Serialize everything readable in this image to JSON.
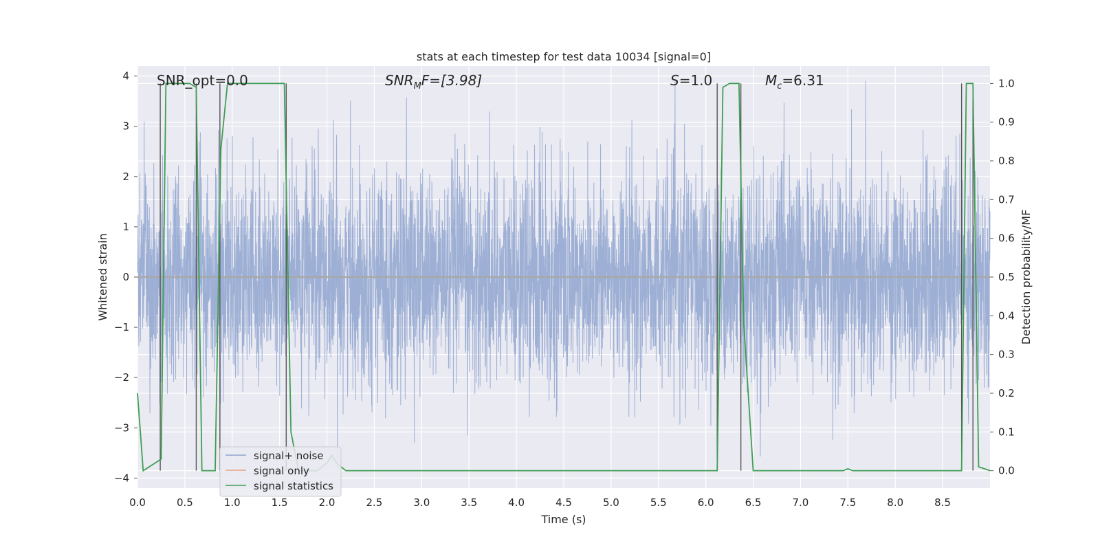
{
  "chart_data": {
    "type": "line",
    "title": "stats at each timestep for test data 10034 [signal=0]",
    "xlabel": "Time (s)",
    "ylabel": "Whitened strain",
    "y2label": "Detection probability/MF",
    "xlim": [
      0.0,
      9.0
    ],
    "ylim": [
      -4.2,
      4.2
    ],
    "y2lim": [
      -0.045,
      1.045
    ],
    "grid": true,
    "legend_position": "lower-left",
    "x_ticks": [
      "0.0",
      "0.5",
      "1.0",
      "1.5",
      "2.0",
      "2.5",
      "3.0",
      "3.5",
      "4.0",
      "4.5",
      "5.0",
      "5.5",
      "6.0",
      "6.5",
      "7.0",
      "7.5",
      "8.0",
      "8.5"
    ],
    "y_ticks": [
      "4",
      "3",
      "2",
      "1",
      "0",
      "−1",
      "−2",
      "−3",
      "−4"
    ],
    "y2_ticks": [
      "1.0",
      "0.9",
      "0.8",
      "0.7",
      "0.6",
      "0.5",
      "0.4",
      "0.3",
      "0.2",
      "0.1",
      "0.0"
    ],
    "annotations": {
      "snr_opt": "SNR_opt=0.0",
      "snr_mf_main": "SNR",
      "snr_mf_sub": "M",
      "snr_mf_rest": "F=[3.98]",
      "s_main": "S",
      "s_rest": "=1.0",
      "mc_main": "M",
      "mc_sub": "c",
      "mc_rest": "=6.31"
    },
    "series": [
      {
        "name": "signal+ noise",
        "color": "#8fa5cf",
        "description_values": "noisy whitened strain, roughly gaussian around 0 with peaks up to about ±3.8",
        "approx_envelope": [
          2.4,
          -2.4
        ]
      },
      {
        "name": "signal only",
        "color": "#e8a07e",
        "values_constant": 0.0
      },
      {
        "name": "signal statistics",
        "color": "#3f9e52",
        "x": [
          0.0,
          0.06,
          0.25,
          0.3,
          0.55,
          0.62,
          0.68,
          0.82,
          0.88,
          0.95,
          1.2,
          1.55,
          1.62,
          1.7,
          1.8,
          1.9,
          2.0,
          2.05,
          2.1,
          2.2,
          2.25,
          3.0,
          4.0,
          5.0,
          6.0,
          6.12,
          6.18,
          6.25,
          6.35,
          6.4,
          6.5,
          7.0,
          7.45,
          7.5,
          7.55,
          8.0,
          8.7,
          8.75,
          8.82,
          8.88,
          9.0
        ],
        "y": [
          0.2,
          0.0,
          0.03,
          1.0,
          1.0,
          0.99,
          0.0,
          0.0,
          0.83,
          1.0,
          1.0,
          1.0,
          0.1,
          0.0,
          0.0,
          0.0,
          0.02,
          0.04,
          0.02,
          0.0,
          0.0,
          0.0,
          0.0,
          0.0,
          0.0,
          0.0,
          0.99,
          1.0,
          1.0,
          0.38,
          0.0,
          0.0,
          0.0,
          0.005,
          0.0,
          0.0,
          0.0,
          1.0,
          1.0,
          0.01,
          0.0
        ]
      }
    ],
    "vertical_lines_x": [
      0.24,
      0.62,
      0.87,
      1.57,
      6.12,
      6.37,
      8.7,
      8.82
    ]
  },
  "legend": {
    "items": [
      {
        "label": "signal+ noise",
        "color": "#8fa5cf"
      },
      {
        "label": "signal only",
        "color": "#e8a07e"
      },
      {
        "label": "signal statistics",
        "color": "#3f9e52"
      }
    ]
  },
  "colors": {
    "plot_bg": "#eaeaf2",
    "grid": "#ffffff",
    "vline": "#555555"
  }
}
